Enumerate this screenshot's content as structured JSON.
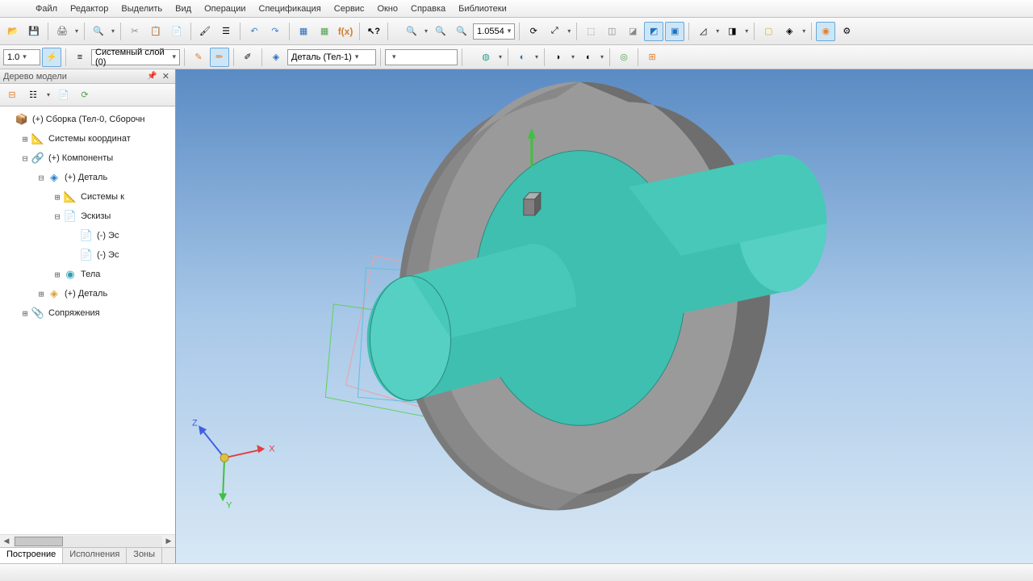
{
  "menu": [
    "Файл",
    "Редактор",
    "Выделить",
    "Вид",
    "Операции",
    "Спецификация",
    "Сервис",
    "Окно",
    "Справка",
    "Библиотеки"
  ],
  "toolbar1": {
    "zoom_value": "1.0554"
  },
  "toolbar2": {
    "scale": "1.0",
    "layer": "Системный слой (0)",
    "part": "Деталь (Тел-1)"
  },
  "side": {
    "title": "Дерево модели",
    "tabs": [
      "Построение",
      "Исполнения",
      "Зоны"
    ]
  },
  "tree": [
    {
      "indent": 0,
      "exp": "",
      "icon": "📦",
      "color": "#2070c0",
      "label": "(+) Сборка (Тел-0, Сборочн"
    },
    {
      "indent": 1,
      "exp": "⊞",
      "icon": "📐",
      "color": "#5090c8",
      "label": "Системы координат"
    },
    {
      "indent": 1,
      "exp": "⊟",
      "icon": "🔗",
      "color": "#3080c0",
      "label": "(+) Компоненты"
    },
    {
      "indent": 2,
      "exp": "⊟",
      "icon": "◈",
      "color": "#2080d0",
      "label": "(+) Деталь"
    },
    {
      "indent": 3,
      "exp": "⊞",
      "icon": "📐",
      "color": "#888",
      "label": "Системы к"
    },
    {
      "indent": 3,
      "exp": "⊟",
      "icon": "📄",
      "color": "#888",
      "label": "Эскизы"
    },
    {
      "indent": 4,
      "exp": "",
      "icon": "📄",
      "color": "#888",
      "label": "(-) Эс"
    },
    {
      "indent": 4,
      "exp": "",
      "icon": "📄",
      "color": "#888",
      "label": "(-) Эс"
    },
    {
      "indent": 3,
      "exp": "⊞",
      "icon": "◉",
      "color": "#30a0b0",
      "label": "Тела"
    },
    {
      "indent": 2,
      "exp": "⊞",
      "icon": "◈",
      "color": "#e0a030",
      "label": "(+) Деталь"
    },
    {
      "indent": 1,
      "exp": "⊞",
      "icon": "📎",
      "color": "#888",
      "label": "Сопряжения"
    }
  ],
  "viewport": {
    "bg_top": "#5a8bc4",
    "bg_bottom": "#d8e8f5",
    "disc_color": "#808080",
    "disc_dark": "#606060",
    "disc_light": "#9a9a9a",
    "shaft_color": "#3fbfb0",
    "shaft_dark": "#2a9a8e",
    "shaft_light": "#55d0c2",
    "sketch1": "#f0a0a0",
    "sketch2": "#60d060",
    "sketch3": "#60c0e0",
    "axis_x": "#e04040",
    "axis_y": "#40c040",
    "axis_z": "#4060e0",
    "gizmo_origin": "#e0c040"
  }
}
